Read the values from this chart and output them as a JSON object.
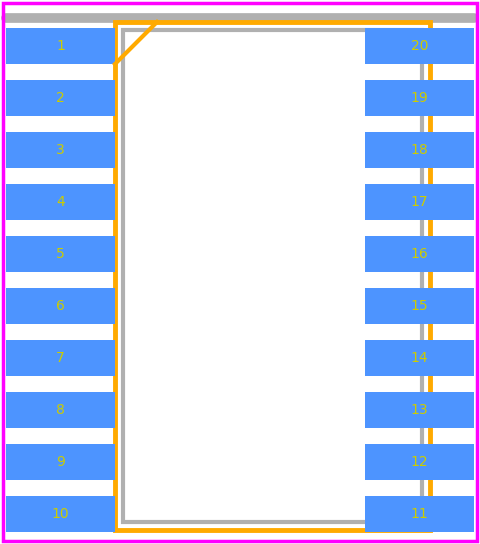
{
  "bg_color": "#ffffff",
  "border_outer_color": "#ff00ff",
  "pin_color": "#4d94ff",
  "pin_text_color": "#cccc00",
  "body_border_color": "#ffaa00",
  "body_fill_color": "#ffffff",
  "body_outline_color": "#b0b0b0",
  "n_pins_per_side": 10,
  "left_pins": [
    1,
    2,
    3,
    4,
    5,
    6,
    7,
    8,
    9,
    10
  ],
  "right_pins": [
    20,
    19,
    18,
    17,
    16,
    15,
    14,
    13,
    12,
    11
  ],
  "fig_width": 4.8,
  "fig_height": 5.44,
  "font_size": 10
}
